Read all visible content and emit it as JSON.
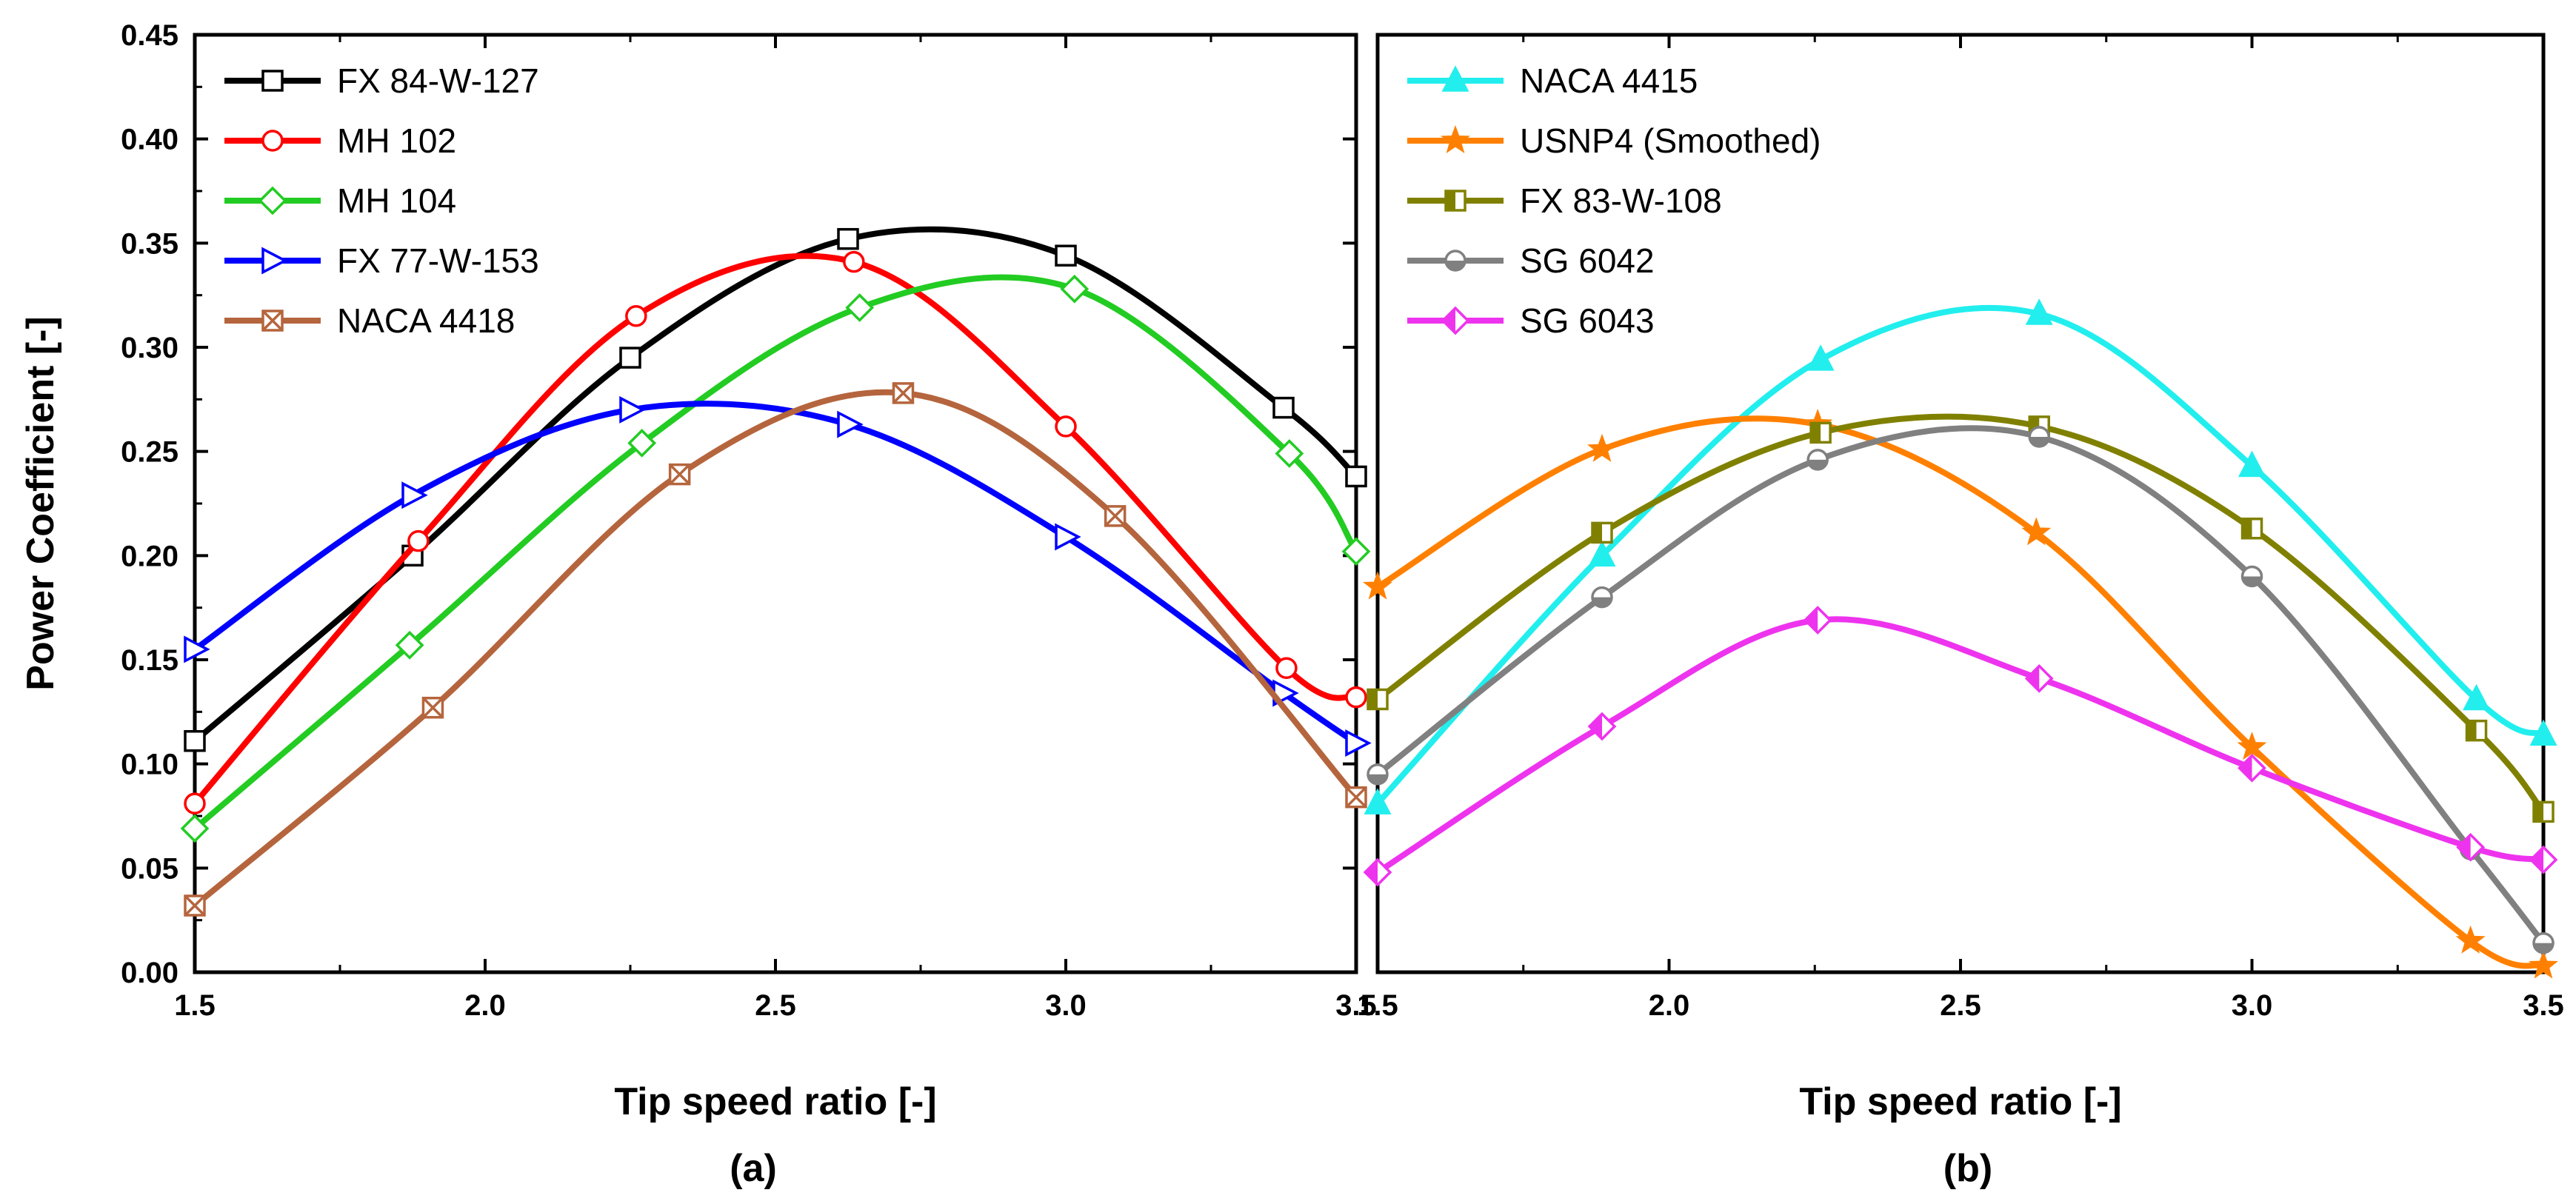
{
  "chart_data": [
    {
      "type": "line",
      "panel_label": "(a)",
      "xlabel": "Tip speed ratio [-]",
      "ylabel": "Power Coefficient [-]",
      "xlim": [
        1.5,
        3.5
      ],
      "ylim": [
        0.0,
        0.45
      ],
      "xticks": [
        "1.5",
        "2.0",
        "2.5",
        "3.0",
        "3.5"
      ],
      "yticks": [
        "0.00",
        "0.05",
        "0.10",
        "0.15",
        "0.20",
        "0.25",
        "0.30",
        "0.35",
        "0.40",
        "0.45"
      ],
      "legend_position": "top-left",
      "series": [
        {
          "name": "FX 84-W-127",
          "color": "#000000",
          "marker": "square",
          "x": [
            1.5,
            1.875,
            2.25,
            2.625,
            3.0,
            3.375,
            3.5
          ],
          "y": [
            0.111,
            0.2,
            0.295,
            0.352,
            0.344,
            0.271,
            0.238
          ]
        },
        {
          "name": "MH 102",
          "color": "#ff0000",
          "marker": "circle",
          "x": [
            1.5,
            1.885,
            2.26,
            2.635,
            3.0,
            3.38,
            3.5
          ],
          "y": [
            0.081,
            0.207,
            0.315,
            0.341,
            0.262,
            0.146,
            0.132
          ]
        },
        {
          "name": "MH 104",
          "color": "#22cc22",
          "marker": "diamond",
          "x": [
            1.5,
            1.87,
            2.27,
            2.645,
            3.015,
            3.385,
            3.5
          ],
          "y": [
            0.069,
            0.157,
            0.254,
            0.319,
            0.328,
            0.249,
            0.202
          ]
        },
        {
          "name": "FX 77-W-153",
          "color": "#0000ff",
          "marker": "triangle-right",
          "x": [
            1.5,
            1.875,
            2.25,
            2.625,
            3.0,
            3.375,
            3.5
          ],
          "y": [
            0.155,
            0.229,
            0.27,
            0.263,
            0.209,
            0.134,
            0.11
          ]
        },
        {
          "name": "NACA 4418",
          "color": "#b5653d",
          "marker": "crossed-square",
          "x": [
            1.5,
            1.91,
            2.335,
            2.72,
            3.085,
            3.5
          ],
          "y": [
            0.032,
            0.127,
            0.239,
            0.278,
            0.219,
            0.084
          ]
        }
      ]
    },
    {
      "type": "line",
      "panel_label": "(b)",
      "xlabel": "Tip speed ratio [-]",
      "ylabel": "",
      "xlim": [
        1.5,
        3.5
      ],
      "ylim": [
        0.0,
        0.45
      ],
      "xticks": [
        "1.5",
        "2.0",
        "2.5",
        "3.0",
        "3.5"
      ],
      "yticks": [],
      "legend_position": "top-left",
      "series": [
        {
          "name": "NACA 4415",
          "color": "#22eeee",
          "marker": "triangle-up",
          "x": [
            1.5,
            1.885,
            2.26,
            2.635,
            3.0,
            3.385,
            3.5
          ],
          "y": [
            0.081,
            0.2,
            0.294,
            0.316,
            0.243,
            0.131,
            0.114
          ]
        },
        {
          "name": "USNP4 (Smoothed)",
          "color": "#ff8000",
          "marker": "star",
          "x": [
            1.5,
            1.885,
            2.255,
            2.63,
            3.0,
            3.375,
            3.5
          ],
          "y": [
            0.185,
            0.251,
            0.263,
            0.211,
            0.108,
            0.015,
            0.003
          ]
        },
        {
          "name": "FX 83-W-108",
          "color": "#808000",
          "marker": "half-square",
          "x": [
            1.5,
            1.885,
            2.26,
            2.635,
            3.0,
            3.385,
            3.5
          ],
          "y": [
            0.131,
            0.211,
            0.259,
            0.262,
            0.213,
            0.116,
            0.077
          ]
        },
        {
          "name": "SG 6042",
          "color": "#808080",
          "marker": "half-circle",
          "x": [
            1.5,
            1.885,
            2.255,
            2.635,
            3.0,
            3.375,
            3.5
          ],
          "y": [
            0.095,
            0.18,
            0.246,
            0.257,
            0.19,
            0.059,
            0.014
          ]
        },
        {
          "name": "SG 6043",
          "color": "#ee33ee",
          "marker": "half-diamond",
          "x": [
            1.5,
            1.885,
            2.255,
            2.635,
            3.0,
            3.375,
            3.5
          ],
          "y": [
            0.048,
            0.118,
            0.169,
            0.141,
            0.098,
            0.06,
            0.054
          ]
        }
      ]
    }
  ]
}
